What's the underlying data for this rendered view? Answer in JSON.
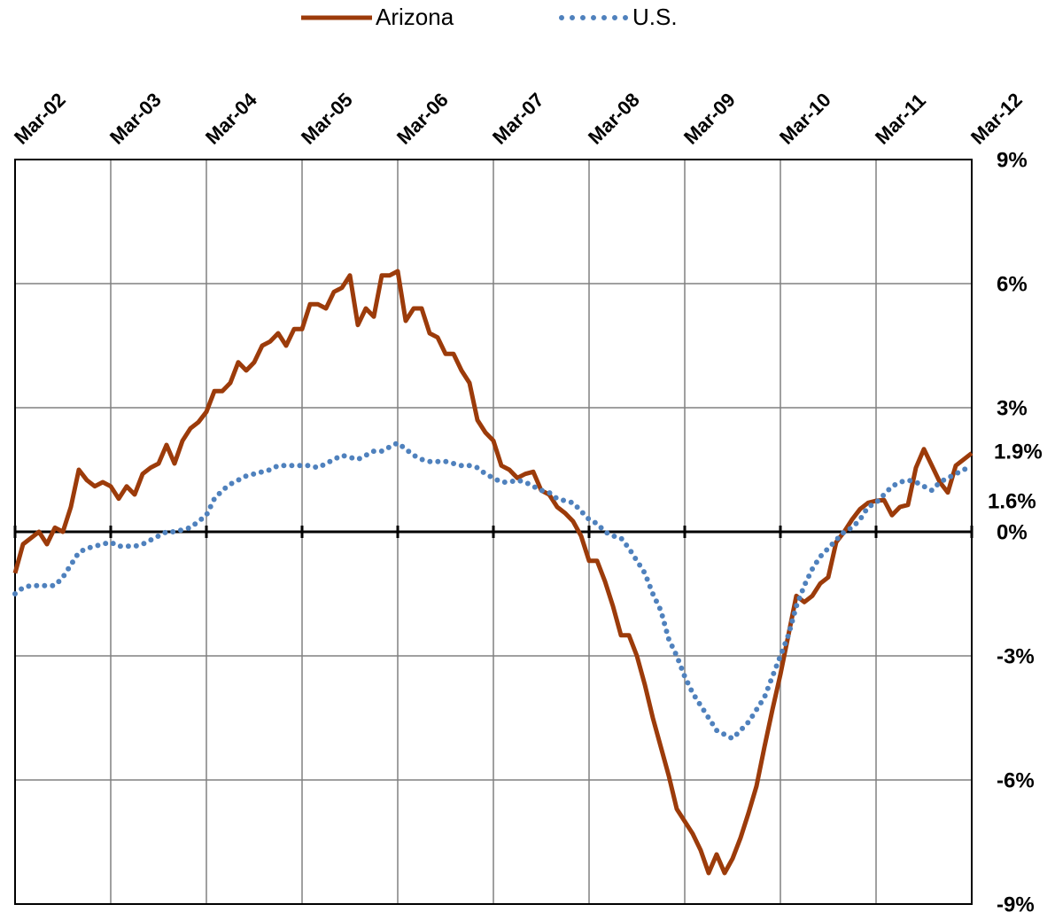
{
  "chart_data": {
    "type": "line",
    "categories": [
      "Mar-02",
      null,
      null,
      null,
      null,
      null,
      null,
      null,
      null,
      null,
      null,
      null,
      "Mar-03",
      null,
      null,
      null,
      null,
      null,
      null,
      null,
      null,
      null,
      null,
      null,
      "Mar-04",
      null,
      null,
      null,
      null,
      null,
      null,
      null,
      null,
      null,
      null,
      null,
      "Mar-05",
      null,
      null,
      null,
      null,
      null,
      null,
      null,
      null,
      null,
      null,
      null,
      "Mar-06",
      null,
      null,
      null,
      null,
      null,
      null,
      null,
      null,
      null,
      null,
      null,
      "Mar-07",
      null,
      null,
      null,
      null,
      null,
      null,
      null,
      null,
      null,
      null,
      null,
      "Mar-08",
      null,
      null,
      null,
      null,
      null,
      null,
      null,
      null,
      null,
      null,
      null,
      "Mar-09",
      null,
      null,
      null,
      null,
      null,
      null,
      null,
      null,
      null,
      null,
      null,
      "Mar-10",
      null,
      null,
      null,
      null,
      null,
      null,
      null,
      null,
      null,
      null,
      null,
      "Mar-11",
      null,
      null,
      null,
      null,
      null,
      null,
      null,
      null,
      null,
      null,
      null,
      "Mar-12"
    ],
    "series": [
      {
        "name": "Arizona",
        "color": "#9c3b0a",
        "style": "solid",
        "last_label": "1.9%",
        "last_label_color": "#c00000",
        "values": [
          -1.0,
          -0.3,
          -0.15,
          0.0,
          -0.3,
          0.1,
          0.0,
          0.6,
          1.5,
          1.25,
          1.1,
          1.2,
          1.1,
          0.8,
          1.1,
          0.9,
          1.4,
          1.55,
          1.65,
          2.1,
          1.65,
          2.2,
          2.5,
          2.65,
          2.9,
          3.4,
          3.4,
          3.6,
          4.1,
          3.9,
          4.1,
          4.5,
          4.6,
          4.8,
          4.5,
          4.9,
          4.9,
          5.5,
          5.5,
          5.4,
          5.8,
          5.9,
          6.2,
          5.0,
          5.4,
          5.2,
          6.2,
          6.2,
          6.3,
          5.1,
          5.4,
          5.4,
          4.8,
          4.7,
          4.3,
          4.3,
          3.9,
          3.6,
          2.7,
          2.4,
          2.2,
          1.6,
          1.5,
          1.3,
          1.4,
          1.45,
          1.0,
          0.9,
          0.6,
          0.45,
          0.25,
          -0.1,
          -0.7,
          -0.7,
          -1.2,
          -1.8,
          -2.5,
          -2.5,
          -3.0,
          -3.7,
          -4.5,
          -5.2,
          -5.9,
          -6.7,
          -7.0,
          -7.3,
          -7.7,
          -8.25,
          -7.8,
          -8.25,
          -7.9,
          -7.4,
          -6.8,
          -6.15,
          -5.2,
          -4.3,
          -3.45,
          -2.5,
          -1.55,
          -1.7,
          -1.55,
          -1.25,
          -1.1,
          -0.25,
          0.0,
          0.3,
          0.55,
          0.7,
          0.75,
          0.77,
          0.4,
          0.6,
          0.65,
          1.55,
          2.0,
          1.6,
          1.2,
          0.95,
          1.6,
          1.75,
          1.9
        ]
      },
      {
        "name": "U.S.",
        "color": "#4f81bd",
        "style": "dotted",
        "last_label": "1.6%",
        "last_label_color": "#4f81bd",
        "values": [
          -1.5,
          -1.35,
          -1.3,
          -1.3,
          -1.3,
          -1.3,
          -1.1,
          -0.8,
          -0.5,
          -0.4,
          -0.35,
          -0.3,
          -0.25,
          -0.35,
          -0.35,
          -0.35,
          -0.3,
          -0.2,
          -0.1,
          0.0,
          0.0,
          0.05,
          0.1,
          0.25,
          0.4,
          0.8,
          1.0,
          1.15,
          1.25,
          1.35,
          1.4,
          1.45,
          1.5,
          1.6,
          1.6,
          1.6,
          1.6,
          1.6,
          1.55,
          1.65,
          1.75,
          1.85,
          1.8,
          1.75,
          1.85,
          1.95,
          1.95,
          2.05,
          2.15,
          2.0,
          1.85,
          1.75,
          1.7,
          1.7,
          1.7,
          1.65,
          1.6,
          1.6,
          1.55,
          1.4,
          1.3,
          1.2,
          1.2,
          1.25,
          1.2,
          1.1,
          1.0,
          0.95,
          0.8,
          0.75,
          0.7,
          0.5,
          0.3,
          0.2,
          0.0,
          -0.1,
          -0.15,
          -0.4,
          -0.7,
          -1.0,
          -1.5,
          -1.9,
          -2.6,
          -3.0,
          -3.5,
          -3.9,
          -4.2,
          -4.5,
          -4.8,
          -4.9,
          -5.0,
          -4.8,
          -4.6,
          -4.3,
          -4.0,
          -3.5,
          -3.0,
          -2.5,
          -1.8,
          -1.3,
          -0.9,
          -0.6,
          -0.4,
          -0.2,
          0.0,
          0.1,
          0.3,
          0.6,
          0.7,
          0.9,
          1.1,
          1.2,
          1.25,
          1.2,
          1.1,
          1.0,
          1.2,
          1.3,
          1.4,
          1.5,
          1.6
        ]
      }
    ],
    "ylim": [
      -9,
      9
    ],
    "yticks": [
      {
        "value": -9,
        "label": "-9%"
      },
      {
        "value": -6,
        "label": "-6%"
      },
      {
        "value": -3,
        "label": "-3%"
      },
      {
        "value": 0,
        "label": "0%"
      },
      {
        "value": 3,
        "label": "3%"
      },
      {
        "value": 6,
        "label": "6%"
      },
      {
        "value": 9,
        "label": "9%"
      }
    ],
    "grid": true,
    "legend": "top"
  }
}
